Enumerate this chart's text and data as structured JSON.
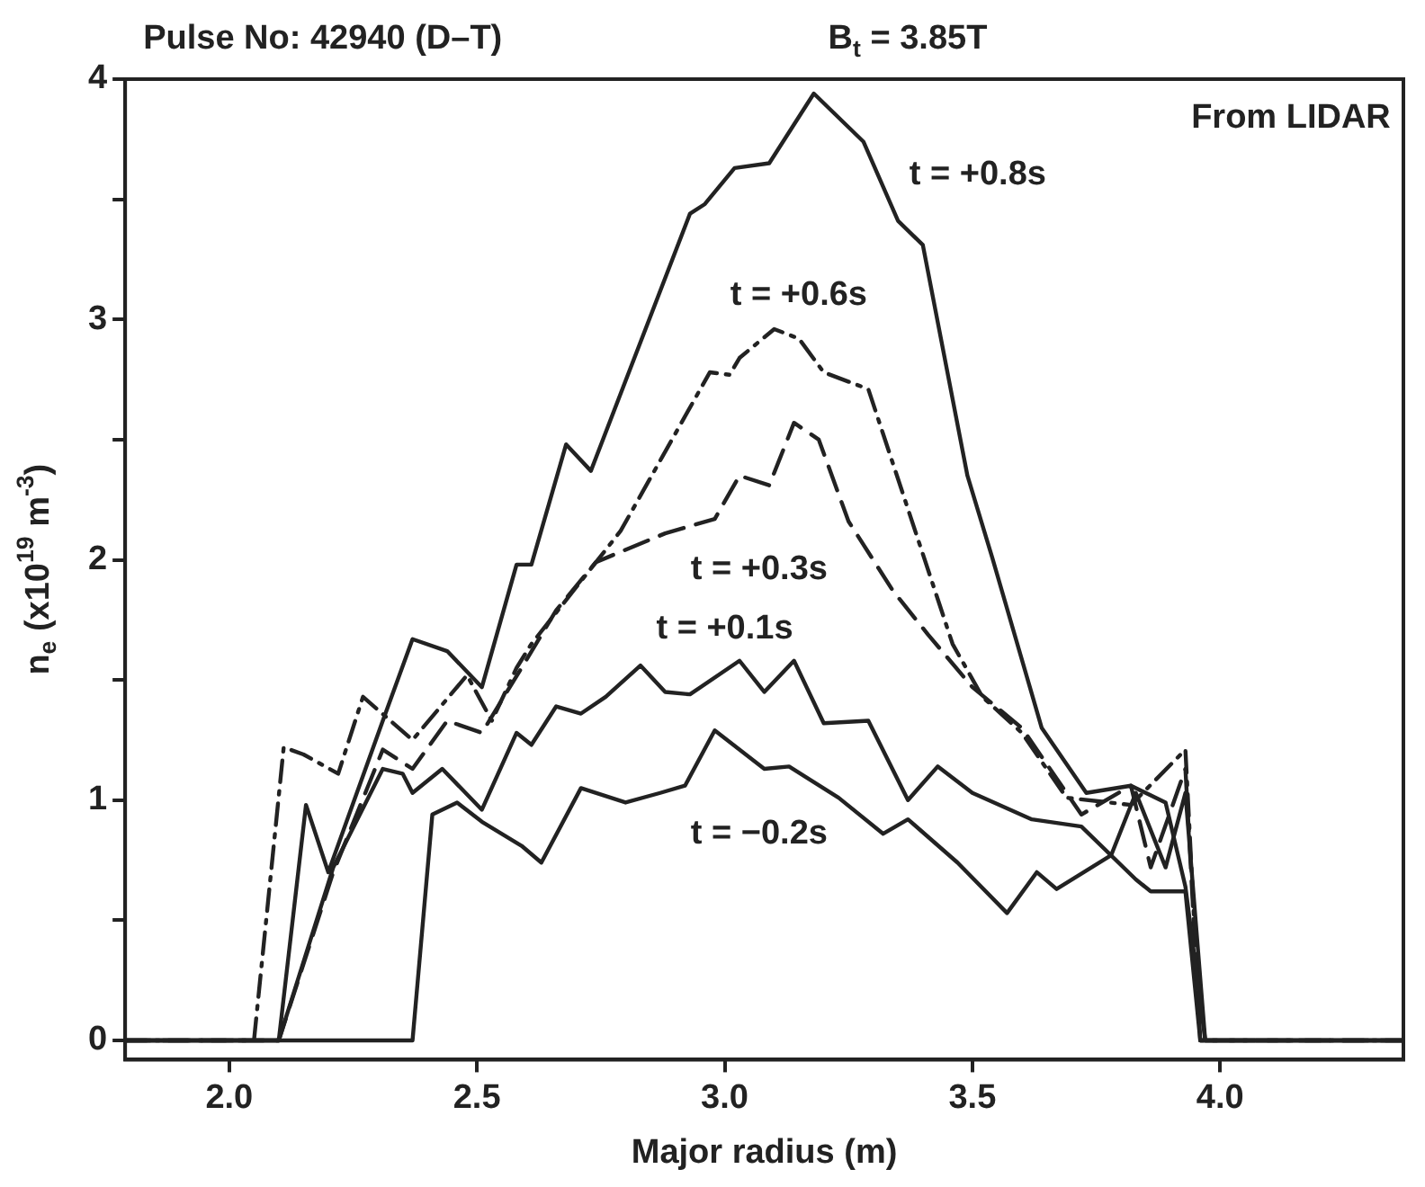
{
  "chart_data": {
    "type": "line",
    "title": "Pulse No: 42940 (D–T)",
    "subtitle": "B$_{t}$ = 3.85T",
    "xlabel": "Major radius (m)",
    "ylabel": "n$_{e}$ (x10$^{19}$ m$^{-3}$)",
    "xlim": [
      1.79,
      4.37
    ],
    "ylim": [
      -0.08,
      4
    ],
    "xticks": [
      {
        "value": 2,
        "label": "2.0"
      },
      {
        "value": 2.5,
        "label": "2.5"
      },
      {
        "value": 3,
        "label": "3.0"
      },
      {
        "value": 3.5,
        "label": "3.5"
      },
      {
        "value": 4,
        "label": "4.0"
      }
    ],
    "yticks": [
      0,
      {
        "value": 0.5,
        "label": null
      },
      1,
      {
        "value": 1.5,
        "label": null
      },
      2,
      {
        "value": 2.5,
        "label": null
      },
      3,
      {
        "value": 3.5,
        "label": null
      },
      4
    ],
    "grid": false,
    "legend": false,
    "marker": "none",
    "series": [
      {
        "color": "#222222",
        "line_style": "solid",
        "x": [
          1.79,
          2.1,
          2.155,
          2.2,
          2.31,
          2.37,
          2.44,
          2.51,
          2.58,
          2.61,
          2.68,
          2.73,
          2.93,
          2.96,
          3.02,
          3.09,
          3.18,
          3.28,
          3.35,
          3.4,
          3.49,
          3.54,
          3.64,
          3.73,
          3.82,
          3.89,
          3.93,
          3.97,
          4.37
        ],
        "values": [
          0,
          0,
          0.98,
          0.7,
          1.33,
          1.67,
          1.62,
          1.47,
          1.98,
          1.98,
          2.48,
          2.37,
          3.44,
          3.48,
          3.63,
          3.65,
          3.94,
          3.74,
          3.41,
          3.31,
          2.35,
          2.01,
          1.3,
          1.03,
          1.06,
          0.99,
          0.64,
          0,
          0
        ]
      },
      {
        "color": "#222222",
        "line_style": "dashdot",
        "x": [
          1.79,
          2.05,
          2.11,
          2.15,
          2.22,
          2.27,
          2.37,
          2.48,
          2.53,
          2.58,
          2.61,
          2.79,
          2.97,
          3.01,
          3.03,
          3.1,
          3.15,
          3.2,
          3.29,
          3.46,
          3.52,
          3.6,
          3.69,
          3.82,
          3.93,
          3.96,
          4.37
        ],
        "values": [
          0,
          0,
          1.22,
          1.19,
          1.11,
          1.43,
          1.25,
          1.52,
          1.33,
          1.55,
          1.65,
          2.12,
          2.78,
          2.77,
          2.84,
          2.96,
          2.92,
          2.78,
          2.71,
          1.65,
          1.43,
          1.28,
          1.01,
          0.98,
          1.21,
          0,
          0
        ]
      },
      {
        "color": "#222222",
        "line_style": "dashed",
        "x": [
          1.79,
          2.1,
          2.21,
          2.31,
          2.37,
          2.44,
          2.51,
          2.59,
          2.66,
          2.74,
          2.88,
          2.98,
          3.03,
          3.09,
          3.14,
          3.19,
          3.25,
          3.34,
          3.41,
          3.5,
          3.6,
          3.72,
          3.82,
          3.86,
          3.93,
          3.96,
          4.37
        ],
        "values": [
          0,
          0,
          0.7,
          1.21,
          1.13,
          1.33,
          1.28,
          1.55,
          1.79,
          1.99,
          2.11,
          2.17,
          2.35,
          2.31,
          2.57,
          2.5,
          2.16,
          1.87,
          1.69,
          1.47,
          1.3,
          0.94,
          1.06,
          0.72,
          1.13,
          0,
          0
        ]
      },
      {
        "color": "#222222",
        "line_style": "solid",
        "x": [
          1.79,
          2.1,
          2.21,
          2.31,
          2.35,
          2.37,
          2.43,
          2.51,
          2.58,
          2.61,
          2.66,
          2.71,
          2.76,
          2.83,
          2.88,
          2.93,
          3.03,
          3.08,
          3.14,
          3.2,
          3.29,
          3.37,
          3.43,
          3.5,
          3.62,
          3.72,
          3.83,
          3.86,
          3.93,
          3.96,
          4.37
        ],
        "values": [
          0,
          0,
          0.72,
          1.13,
          1.11,
          1.03,
          1.13,
          0.96,
          1.28,
          1.23,
          1.39,
          1.36,
          1.43,
          1.56,
          1.45,
          1.44,
          1.58,
          1.45,
          1.58,
          1.32,
          1.33,
          1,
          1.14,
          1.03,
          0.92,
          0.89,
          0.67,
          0.62,
          0.62,
          0,
          0
        ]
      },
      {
        "color": "#222222",
        "line_style": "solid",
        "x": [
          1.79,
          2.37,
          2.41,
          2.46,
          2.51,
          2.59,
          2.63,
          2.71,
          2.8,
          2.87,
          2.92,
          2.98,
          3.08,
          3.13,
          3.23,
          3.32,
          3.37,
          3.47,
          3.57,
          3.63,
          3.67,
          3.78,
          3.83,
          3.89,
          3.93,
          3.97,
          4.37
        ],
        "values": [
          0,
          0,
          0.94,
          0.99,
          0.91,
          0.81,
          0.74,
          1.05,
          0.99,
          1.03,
          1.06,
          1.29,
          1.13,
          1.14,
          1.01,
          0.86,
          0.92,
          0.74,
          0.53,
          0.7,
          0.63,
          0.77,
          1.03,
          0.72,
          1.03,
          0,
          0
        ]
      }
    ],
    "annotations": [
      "From LIDAR",
      "t = +0.8s",
      "t = +0.6s",
      "t = +0.3s",
      "t = +0.1s",
      "t = −0.2s"
    ]
  }
}
